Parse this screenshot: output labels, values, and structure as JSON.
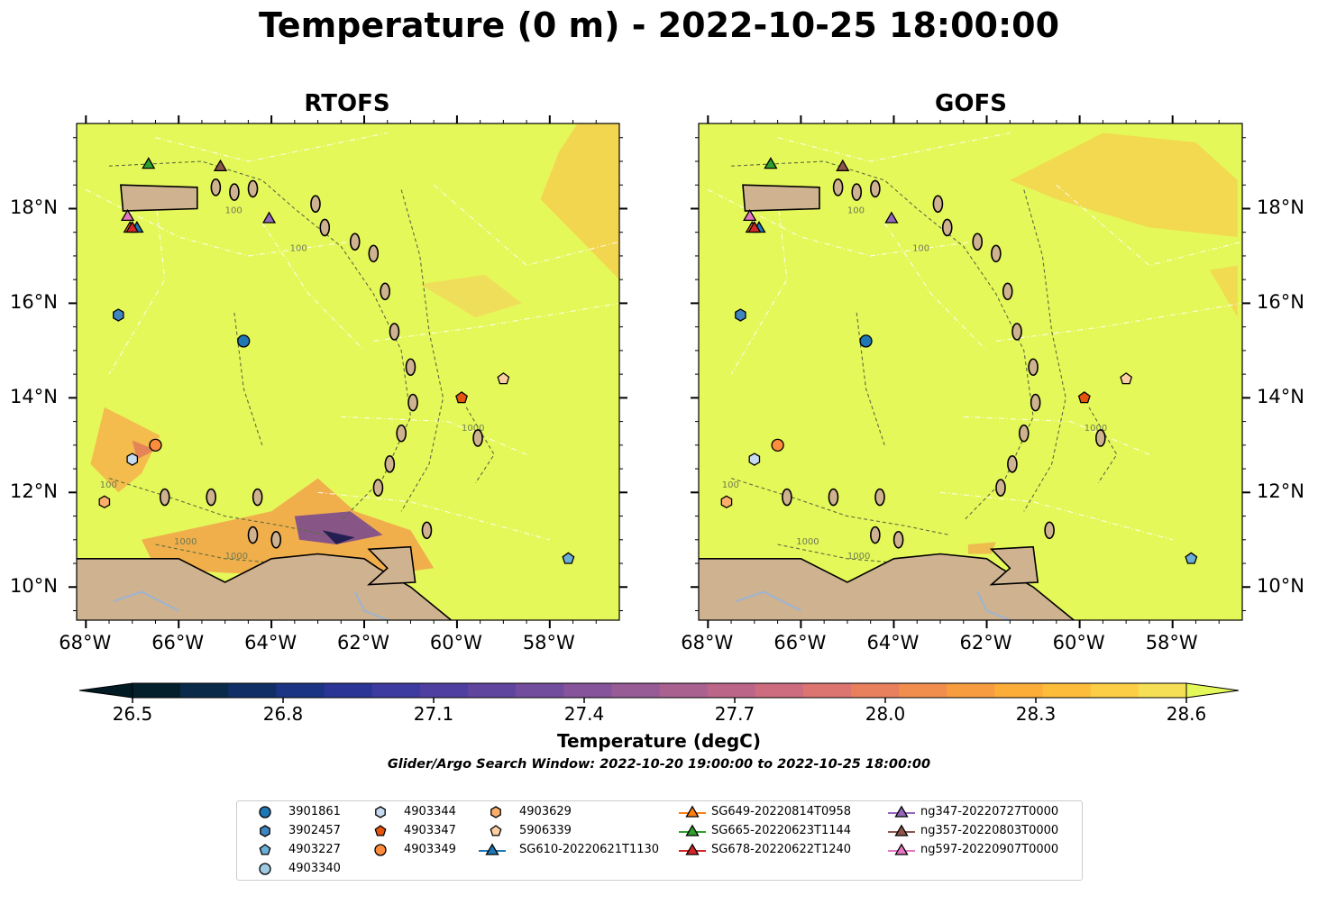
{
  "title": "Temperature (0 m) - 2022-10-25 18:00:00",
  "panels": [
    {
      "title": "RTOFS",
      "warm_patches": "south"
    },
    {
      "title": "GOFS",
      "warm_patches": "east"
    }
  ],
  "lon_ticks": [
    "68°W",
    "66°W",
    "64°W",
    "62°W",
    "60°W",
    "58°W"
  ],
  "lat_ticks": [
    "18°N",
    "16°N",
    "14°N",
    "12°N",
    "10°N"
  ],
  "extent": {
    "lon": [
      -68.2,
      -56.5
    ],
    "lat": [
      9.3,
      19.8
    ]
  },
  "colorbar": {
    "ticks": [
      "26.5",
      "26.8",
      "27.1",
      "27.4",
      "27.7",
      "28.0",
      "28.3",
      "28.6"
    ],
    "label": "Temperature (degC)",
    "colormap": "thermal",
    "range": [
      26.5,
      28.6
    ],
    "extend": "both"
  },
  "search_window": "Glider/Argo Search Window: 2022-10-20 19:00:00 to 2022-10-25 18:00:00",
  "colors": {
    "ocean": "#e5f85a",
    "land": "#cfb28f",
    "rivers": "#9cb4d2",
    "contours": "#5c6d3c",
    "boundaries": "#ffffff"
  },
  "contour_labels": [
    "100",
    "1000"
  ],
  "markers": [
    {
      "label": "3901861",
      "shape": "circle",
      "color": "#1f77b4",
      "lon": -64.6,
      "lat": 15.2
    },
    {
      "label": "3902457",
      "shape": "hexagon",
      "color": "#3f85bf",
      "lon": -67.3,
      "lat": 15.75
    },
    {
      "label": "4903227",
      "shape": "pentagon",
      "color": "#6baed6",
      "lon": -57.6,
      "lat": 10.6
    },
    {
      "label": "4903340",
      "shape": "circle",
      "color": "#9ecae1",
      "lon": null,
      "lat": null
    },
    {
      "label": "4903344",
      "shape": "hexagon",
      "color": "#c6dbef",
      "lon": -67.0,
      "lat": 12.7
    },
    {
      "label": "4903347",
      "shape": "pentagon",
      "color": "#e6550d",
      "lon": -59.9,
      "lat": 14.0
    },
    {
      "label": "4903349",
      "shape": "circle",
      "color": "#fd8d3c",
      "lon": -66.5,
      "lat": 13.0
    },
    {
      "label": "4903629",
      "shape": "hexagon",
      "color": "#fdae6b",
      "lon": -67.6,
      "lat": 11.8
    },
    {
      "label": "5906339",
      "shape": "pentagon",
      "color": "#fdd0a2",
      "lon": -59.0,
      "lat": 14.4
    },
    {
      "label": "SG610-20220621T1130",
      "shape": "triangle",
      "color": "#1f77b4",
      "lon": -66.9,
      "lat": 17.6
    },
    {
      "label": "SG649-20220814T0958",
      "shape": "triangle",
      "color": "#ff7f0e",
      "lon": -67.05,
      "lat": 17.6
    },
    {
      "label": "SG665-20220623T1144",
      "shape": "triangle",
      "color": "#2ca02c",
      "lon": -66.65,
      "lat": 18.95
    },
    {
      "label": "SG678-20220622T1240",
      "shape": "triangle",
      "color": "#d62728",
      "lon": -67.0,
      "lat": 17.6
    },
    {
      "label": "ng347-20220727T0000",
      "shape": "triangle",
      "color": "#9467bd",
      "lon": -64.05,
      "lat": 17.8
    },
    {
      "label": "ng357-20220803T0000",
      "shape": "triangle",
      "color": "#8c564b",
      "lon": -65.1,
      "lat": 18.9
    },
    {
      "label": "ng597-20220907T0000",
      "shape": "triangle",
      "color": "#e377c2",
      "lon": -67.1,
      "lat": 17.85
    }
  ]
}
